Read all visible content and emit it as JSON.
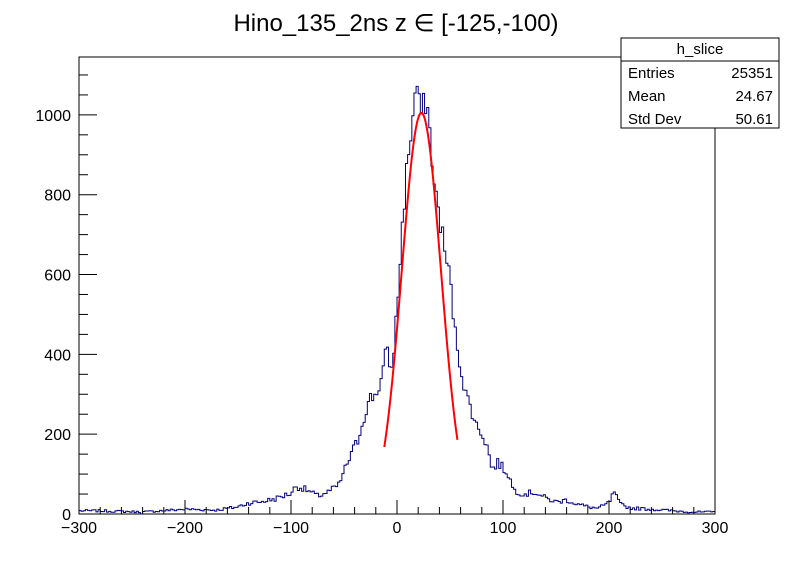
{
  "chart_data": {
    "type": "histogram",
    "title": "Hino_135_2ns z  ∈ [-125,-100)",
    "xlabel": "",
    "ylabel": "",
    "xlim": [
      -300,
      300
    ],
    "ylim": [
      0,
      1145
    ],
    "bin_width": 2,
    "x_ticks": [
      -300,
      -200,
      -100,
      0,
      100,
      200,
      300
    ],
    "x_tick_labels": [
      "−300",
      "−200",
      "−100",
      "0",
      "100",
      "200",
      "300"
    ],
    "y_ticks": [
      0,
      200,
      400,
      600,
      800,
      1000
    ],
    "y_tick_labels": [
      "0",
      "200",
      "400",
      "600",
      "800",
      "1000"
    ],
    "histogram_color": "#00007f",
    "fit_color": "#ff0000",
    "fit": {
      "function": "gaus",
      "constant": 1005,
      "mean": 23,
      "sigma": 18.5,
      "range": [
        -12,
        57
      ]
    },
    "histogram_points": [
      [
        -280,
        8
      ],
      [
        -240,
        5
      ],
      [
        -200,
        12
      ],
      [
        -170,
        10
      ],
      [
        -150,
        18
      ],
      [
        -140,
        28
      ],
      [
        -130,
        30
      ],
      [
        -115,
        38
      ],
      [
        -100,
        52
      ],
      [
        -95,
        70
      ],
      [
        -85,
        60
      ],
      [
        -75,
        45
      ],
      [
        -65,
        55
      ],
      [
        -55,
        72
      ],
      [
        -48,
        120
      ],
      [
        -43,
        150
      ],
      [
        -37,
        185
      ],
      [
        -30,
        255
      ],
      [
        -25,
        290
      ],
      [
        -20,
        300
      ],
      [
        -15,
        335
      ],
      [
        -10,
        410
      ],
      [
        -5,
        360
      ],
      [
        0,
        510
      ],
      [
        5,
        720
      ],
      [
        10,
        890
      ],
      [
        15,
        990
      ],
      [
        18,
        1090
      ],
      [
        22,
        1000
      ],
      [
        28,
        1040
      ],
      [
        32,
        930
      ],
      [
        35,
        820
      ],
      [
        40,
        750
      ],
      [
        45,
        660
      ],
      [
        50,
        590
      ],
      [
        55,
        450
      ],
      [
        60,
        370
      ],
      [
        65,
        300
      ],
      [
        70,
        265
      ],
      [
        75,
        220
      ],
      [
        80,
        205
      ],
      [
        85,
        170
      ],
      [
        90,
        110
      ],
      [
        95,
        130
      ],
      [
        100,
        115
      ],
      [
        105,
        100
      ],
      [
        110,
        60
      ],
      [
        120,
        50
      ],
      [
        130,
        55
      ],
      [
        140,
        40
      ],
      [
        150,
        30
      ],
      [
        160,
        35
      ],
      [
        170,
        25
      ],
      [
        180,
        18
      ],
      [
        190,
        14
      ],
      [
        200,
        28
      ],
      [
        205,
        55
      ],
      [
        210,
        25
      ],
      [
        220,
        15
      ],
      [
        240,
        12
      ],
      [
        260,
        8
      ],
      [
        280,
        5
      ],
      [
        299,
        5
      ]
    ],
    "stats_box": {
      "name": "h_slice",
      "rows": [
        {
          "label": "Entries",
          "value": "25351"
        },
        {
          "label": "Mean",
          "value": "24.67"
        },
        {
          "label": "Std Dev",
          "value": "50.61"
        }
      ]
    }
  }
}
